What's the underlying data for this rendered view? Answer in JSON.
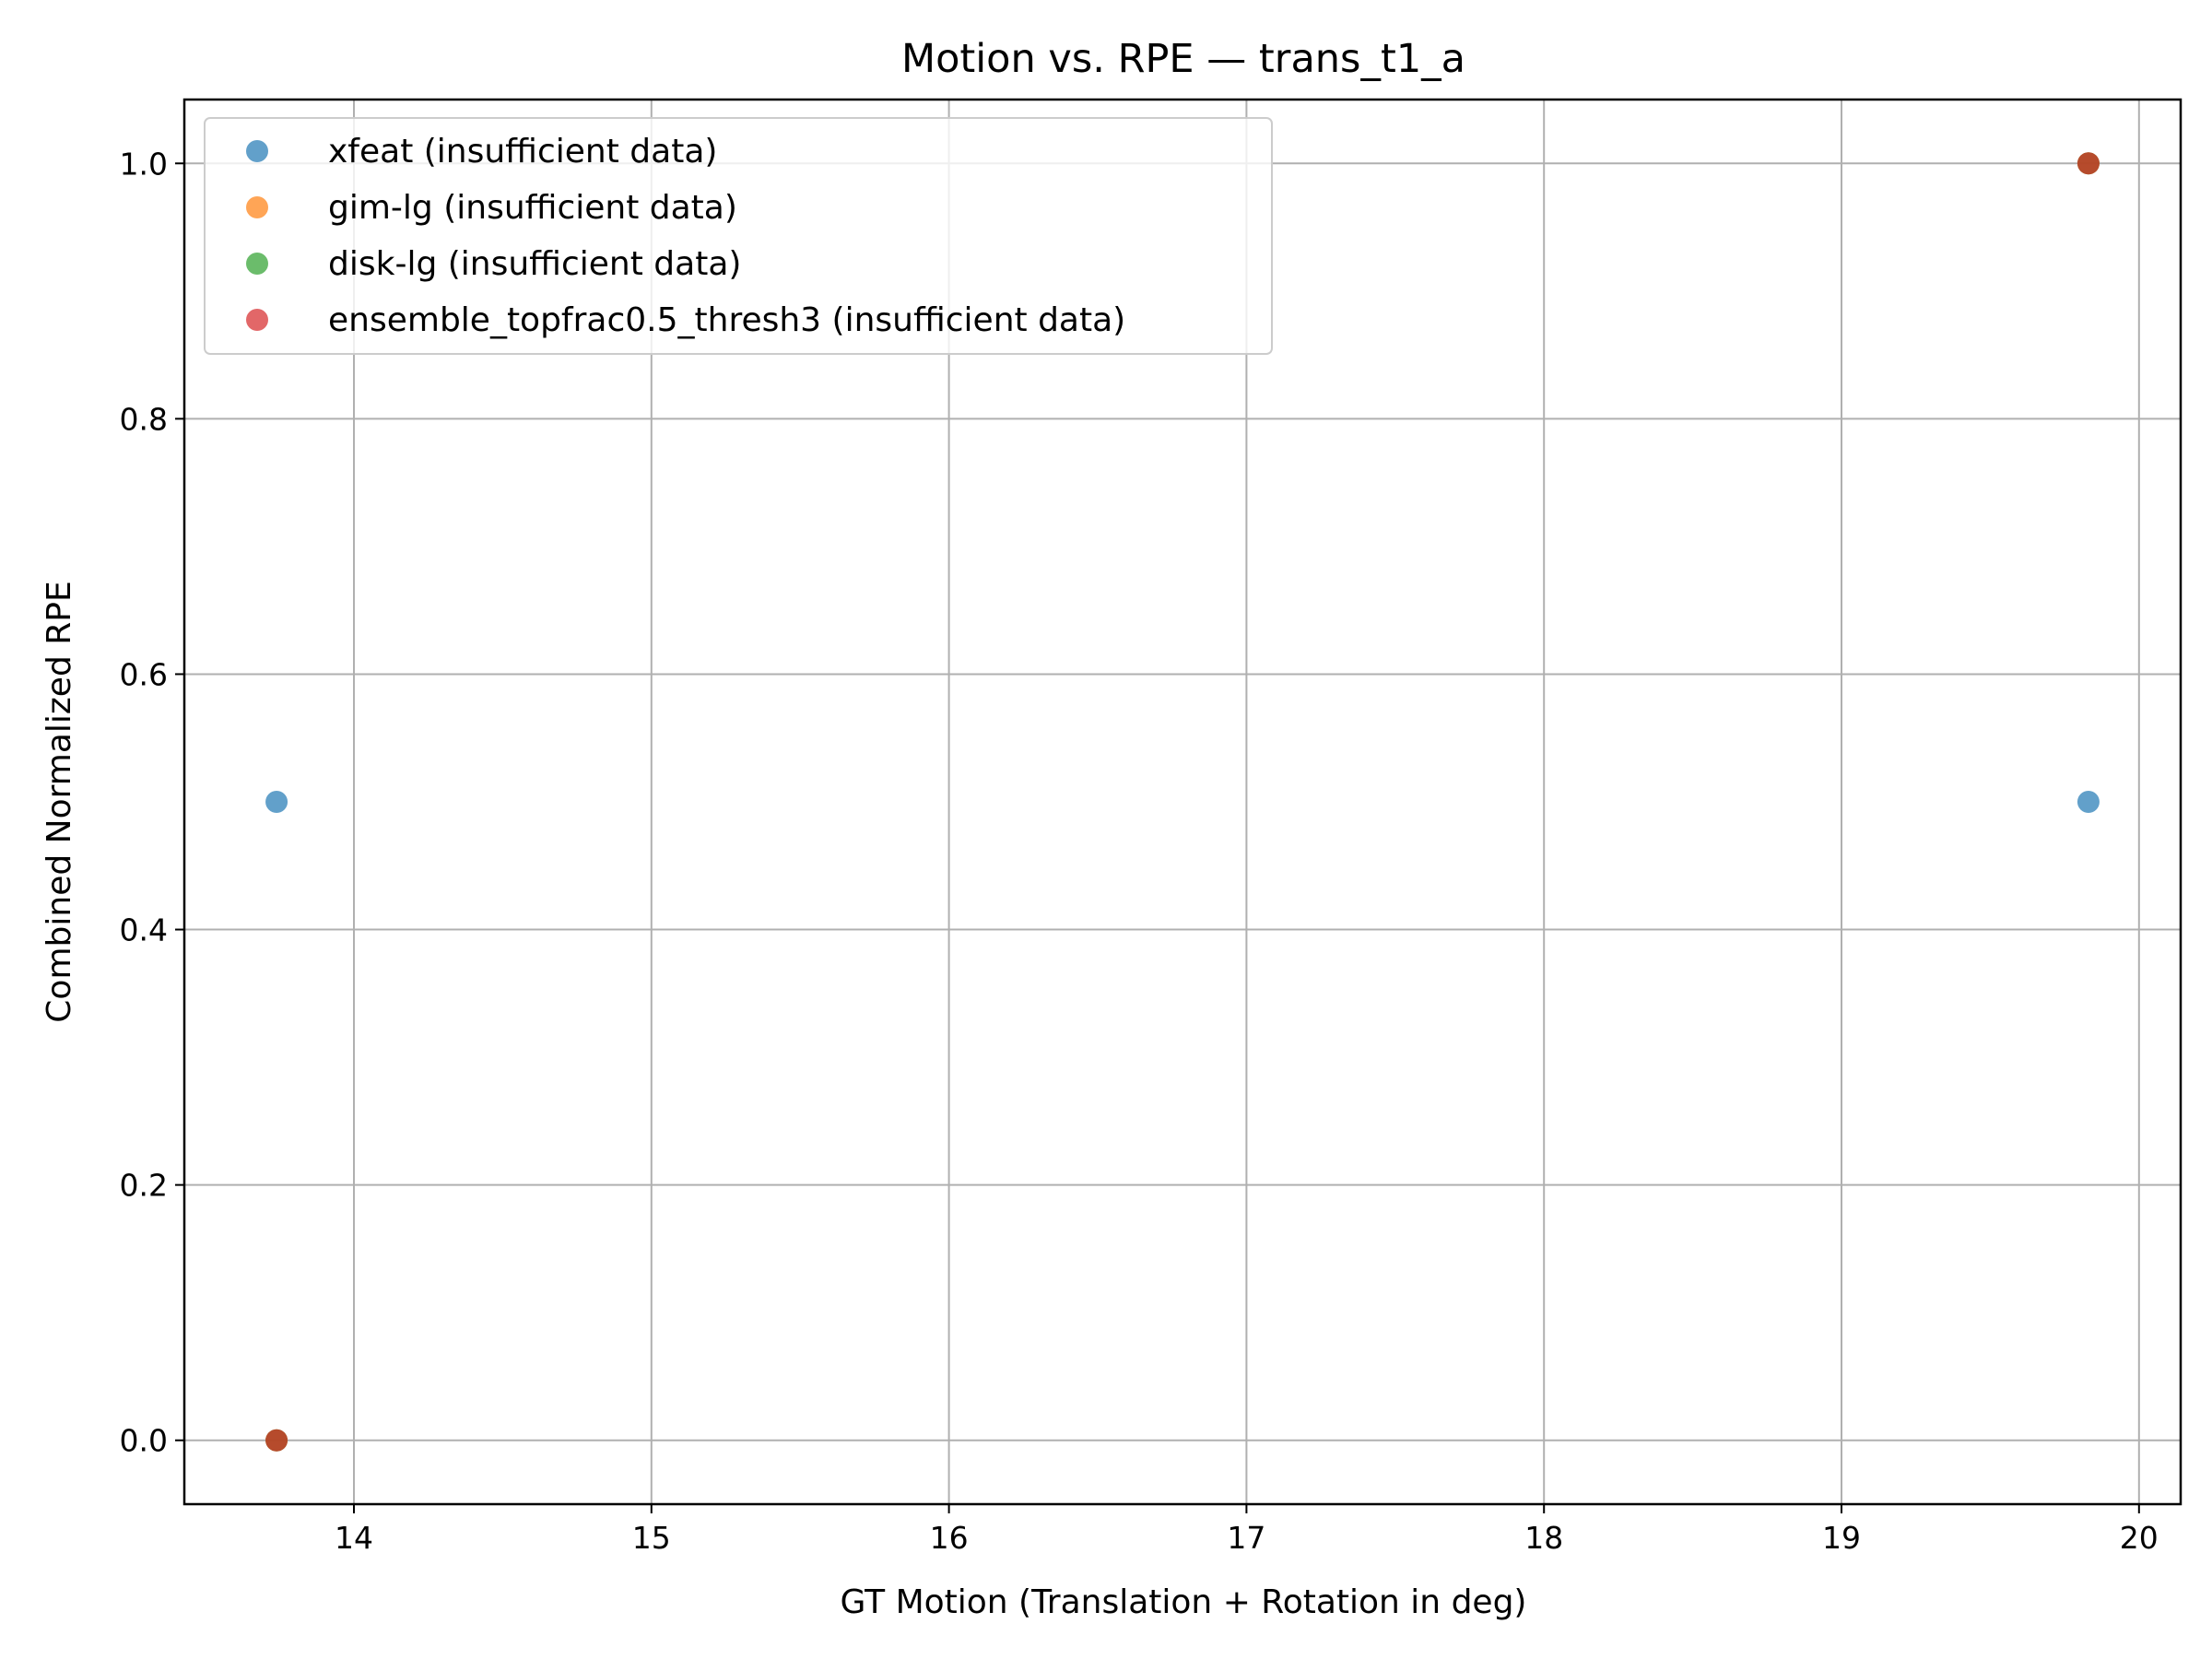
{
  "chart_data": {
    "type": "scatter",
    "title": "Motion vs. RPE — trans_t1_a",
    "xlabel": "GT Motion (Translation + Rotation in deg)",
    "ylabel": "Combined Normalized RPE",
    "xlim": [
      13.43,
      20.14
    ],
    "ylim": [
      -0.05,
      1.05
    ],
    "xticks": [
      14,
      15,
      16,
      17,
      18,
      19,
      20
    ],
    "yticks": [
      0.0,
      0.2,
      0.4,
      0.6,
      0.8,
      1.0
    ],
    "xtick_labels": [
      "14",
      "15",
      "16",
      "17",
      "18",
      "19",
      "20"
    ],
    "ytick_labels": [
      "0.0",
      "0.2",
      "0.4",
      "0.6",
      "0.8",
      "1.0"
    ],
    "grid": true,
    "legend_position": "top-left",
    "series": [
      {
        "name": "xfeat (insufficient data)",
        "color": "#1f77b4",
        "x": [
          13.74,
          19.83
        ],
        "y": [
          0.5,
          0.5
        ]
      },
      {
        "name": "gim-lg (insufficient data)",
        "color": "#ff7f0e",
        "x": [
          13.74,
          19.83
        ],
        "y": [
          0.0,
          1.0
        ]
      },
      {
        "name": "disk-lg (insufficient data)",
        "color": "#2ca02c",
        "x": [
          13.74,
          19.83
        ],
        "y": [
          0.0,
          1.0
        ]
      },
      {
        "name": "ensemble_topfrac0.5_thresh3 (insufficient data)",
        "color": "#d62728",
        "x": [
          13.74,
          19.83
        ],
        "y": [
          0.0,
          1.0
        ]
      }
    ]
  }
}
